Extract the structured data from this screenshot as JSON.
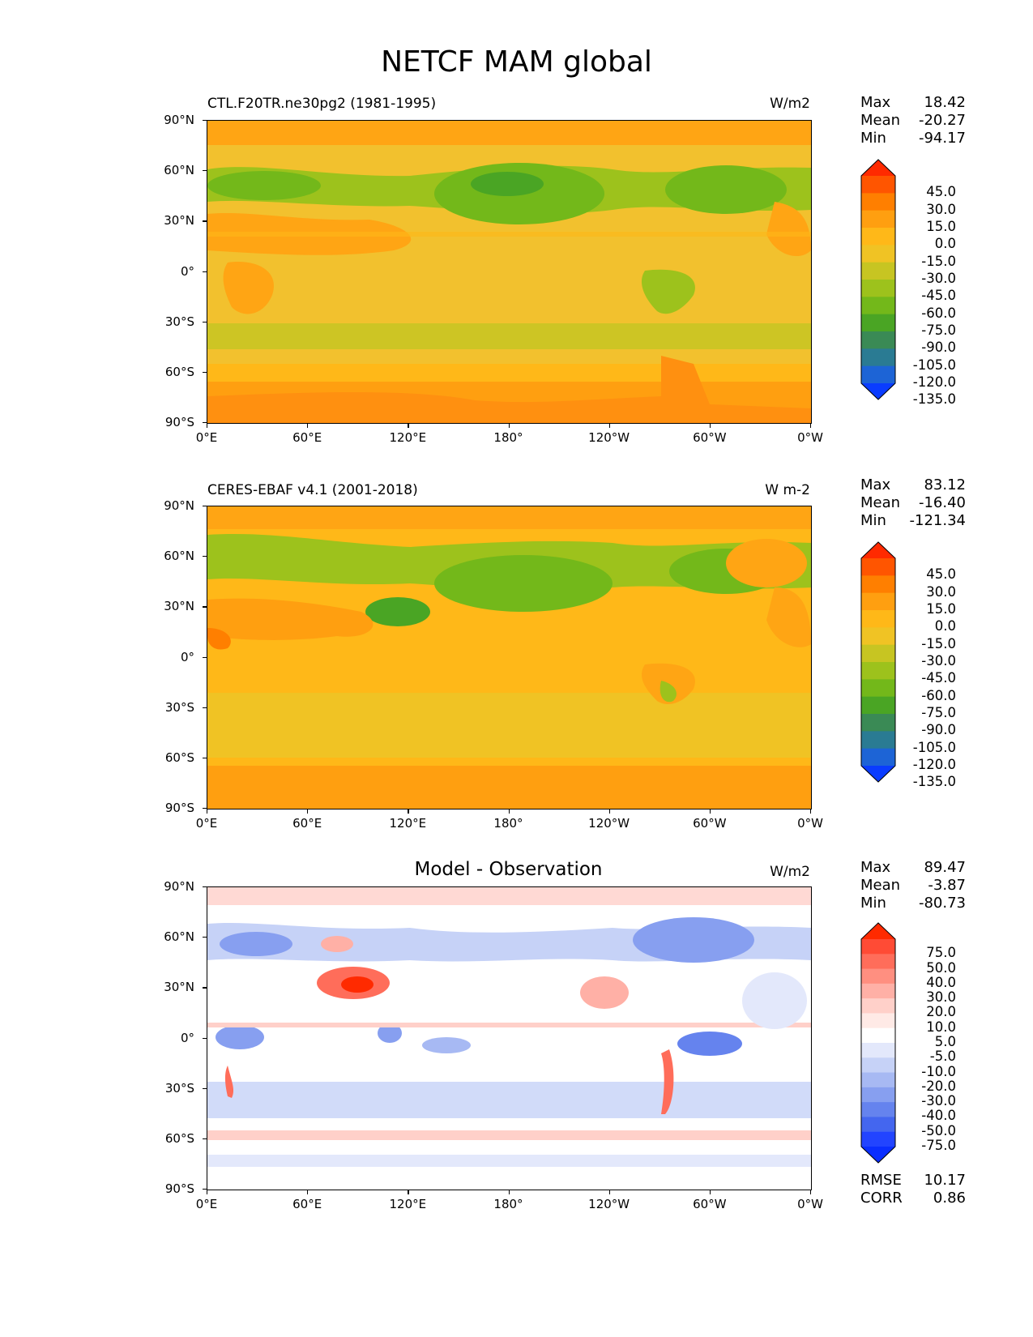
{
  "title": "NETCF MAM global",
  "lat_labels": [
    "90°N",
    "60°N",
    "30°N",
    "0°",
    "30°S",
    "60°S",
    "90°S"
  ],
  "lon_labels": [
    "0°E",
    "60°E",
    "120°E",
    "180°",
    "120°W",
    "60°W",
    "0°W"
  ],
  "panels": [
    {
      "left_title": "CTL.F20TR.ne30pg2 (1981-1995)",
      "center_title": "",
      "units": "W/m2",
      "stats": {
        "max_label": "Max",
        "max": "18.42",
        "mean_label": "Mean",
        "mean": "-20.27",
        "min_label": "Min",
        "min": "-94.17"
      },
      "colorbar_labels": [
        "45.0",
        "30.0",
        "15.0",
        "0.0",
        "-15.0",
        "-30.0",
        "-45.0",
        "-60.0",
        "-75.0",
        "-90.0",
        "-105.0",
        "-120.0",
        "-135.0"
      ]
    },
    {
      "left_title": "CERES-EBAF v4.1 (2001-2018)",
      "center_title": "",
      "units": "W m-2",
      "stats": {
        "max_label": "Max",
        "max": "83.12",
        "mean_label": "Mean",
        "mean": "-16.40",
        "min_label": "Min",
        "min": "-121.34"
      },
      "colorbar_labels": [
        "45.0",
        "30.0",
        "15.0",
        "0.0",
        "-15.0",
        "-30.0",
        "-45.0",
        "-60.0",
        "-75.0",
        "-90.0",
        "-105.0",
        "-120.0",
        "-135.0"
      ]
    },
    {
      "left_title": "",
      "center_title": "Model - Observation",
      "units": "W/m2",
      "stats": {
        "max_label": "Max",
        "max": "89.47",
        "mean_label": "Mean",
        "mean": "-3.87",
        "min_label": "Min",
        "min": "-80.73"
      },
      "colorbar_labels": [
        "75.0",
        "50.0",
        "40.0",
        "30.0",
        "20.0",
        "10.0",
        "5.0",
        "-5.0",
        "-10.0",
        "-20.0",
        "-30.0",
        "-40.0",
        "-50.0",
        "-75.0"
      ],
      "footer": {
        "rmse_label": "RMSE",
        "rmse": "10.17",
        "corr_label": "CORR",
        "corr": "0.86"
      }
    }
  ],
  "colors": {
    "field_cmap": [
      "#ff2a00",
      "#ff5500",
      "#ff7f00",
      "#ff9f10",
      "#ffb818",
      "#f0c324",
      "#c7c522",
      "#9dc21c",
      "#73b81a",
      "#4aa524",
      "#3a8a55",
      "#2a7b93",
      "#1d64d6",
      "#0a3cff"
    ],
    "diff_cmap": [
      "#ff2a00",
      "#ff4b35",
      "#ff6d5a",
      "#ff8f80",
      "#ffb0a6",
      "#ffd0c9",
      "#ffeae6",
      "#ffffff",
      "#e3e8fb",
      "#c6d2f7",
      "#a7b9f3",
      "#879ff0",
      "#6583ee",
      "#4466ef",
      "#2244ff",
      "#0a2eff"
    ]
  }
}
